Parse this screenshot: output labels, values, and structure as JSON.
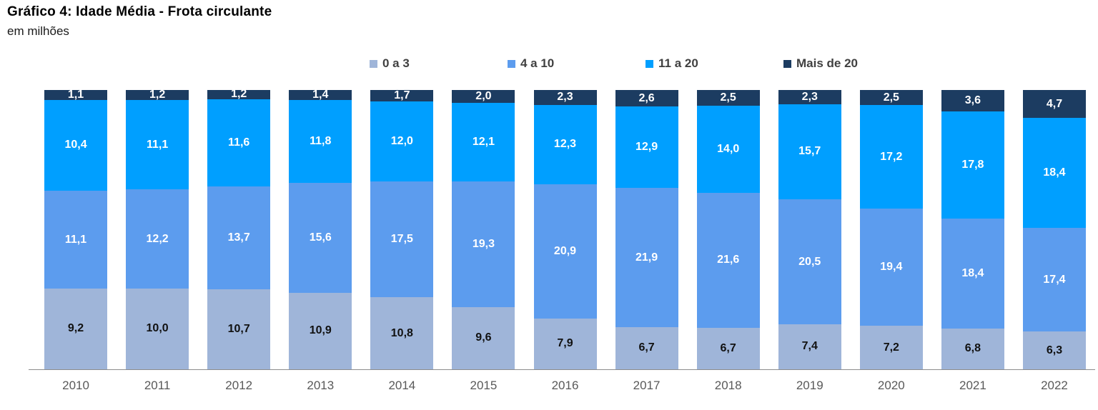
{
  "chart_data": {
    "type": "bar",
    "variant": "stacked-100-percent",
    "stacked": true,
    "title": "Gráfico 4: Idade Média - Frota circulante",
    "subtitle": "em milhões",
    "unit": "milhões",
    "decimal_separator": ",",
    "legend_position": "top-center",
    "grid": false,
    "axis_line_color": "#8C8C8C",
    "xlabel_color": "#595959",
    "legend_text_color": "#404040",
    "categories": [
      "2010",
      "2011",
      "2012",
      "2013",
      "2014",
      "2015",
      "2016",
      "2017",
      "2018",
      "2019",
      "2020",
      "2021",
      "2022"
    ],
    "series": [
      {
        "name": "0 a 3",
        "color": "#9FB5D9",
        "label_color": "#111111",
        "values": [
          9.2,
          10.0,
          10.7,
          10.9,
          10.8,
          9.6,
          7.9,
          6.7,
          6.7,
          7.4,
          7.2,
          6.8,
          6.3
        ]
      },
      {
        "name": "4 a 10",
        "color": "#5C9CEE",
        "label_color": "#FFFFFF",
        "values": [
          11.1,
          12.2,
          13.7,
          15.6,
          17.5,
          19.3,
          20.9,
          21.9,
          21.6,
          20.5,
          19.4,
          18.4,
          17.4
        ]
      },
      {
        "name": "11 a 20",
        "color": "#009FFF",
        "label_color": "#FFFFFF",
        "values": [
          10.4,
          11.1,
          11.6,
          11.8,
          12.0,
          12.1,
          12.3,
          12.9,
          14.0,
          15.7,
          17.2,
          17.8,
          18.4
        ]
      },
      {
        "name": "Mais de 20",
        "color": "#1C3C61",
        "label_color": "#FFFFFF",
        "values": [
          1.1,
          1.2,
          1.2,
          1.4,
          1.7,
          2.0,
          2.3,
          2.6,
          2.5,
          2.3,
          2.5,
          3.6,
          4.7
        ]
      }
    ]
  }
}
